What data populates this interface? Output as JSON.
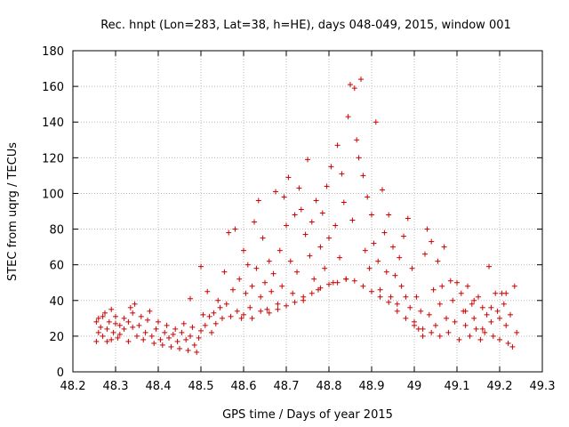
{
  "chart_data": {
    "type": "scatter",
    "title": "Rec. hnpt (Lon=283, Lat=38, h=HE), days 048-049, 2015, window 001",
    "xlabel": "GPS time / Days of year 2015",
    "ylabel": "STEC from uqrg / TECUs",
    "xlim": [
      48.2,
      49.3
    ],
    "ylim": [
      0,
      180
    ],
    "xticks": [
      "48.2",
      "48.3",
      "48.4",
      "48.5",
      "48.6",
      "48.7",
      "48.8",
      "48.9",
      "49",
      "49.1",
      "49.2",
      "49.3"
    ],
    "yticks": [
      "0",
      "20",
      "40",
      "60",
      "80",
      "100",
      "120",
      "140",
      "160",
      "180"
    ],
    "grid": true,
    "marker": "+",
    "color": "#cc0000",
    "series": [
      {
        "name": "STEC",
        "points": [
          [
            48.255,
            17
          ],
          [
            48.26,
            30
          ],
          [
            48.265,
            25
          ],
          [
            48.27,
            20
          ],
          [
            48.275,
            33
          ],
          [
            48.28,
            17
          ],
          [
            48.285,
            28
          ],
          [
            48.29,
            35
          ],
          [
            48.295,
            22
          ],
          [
            48.3,
            31
          ],
          [
            48.305,
            19
          ],
          [
            48.31,
            26
          ],
          [
            48.255,
            28
          ],
          [
            48.26,
            22
          ],
          [
            48.27,
            31
          ],
          [
            48.28,
            24
          ],
          [
            48.29,
            18
          ],
          [
            48.3,
            27
          ],
          [
            48.31,
            21
          ],
          [
            48.32,
            30
          ],
          [
            48.33,
            17
          ],
          [
            48.34,
            25
          ],
          [
            48.32,
            24
          ],
          [
            48.33,
            28
          ],
          [
            48.335,
            36
          ],
          [
            48.34,
            33
          ],
          [
            48.345,
            38
          ],
          [
            48.35,
            20
          ],
          [
            48.355,
            26
          ],
          [
            48.36,
            31
          ],
          [
            48.365,
            18
          ],
          [
            48.37,
            22
          ],
          [
            48.375,
            29
          ],
          [
            48.38,
            34
          ],
          [
            48.385,
            20
          ],
          [
            48.39,
            16
          ],
          [
            48.395,
            24
          ],
          [
            48.4,
            28
          ],
          [
            48.405,
            18
          ],
          [
            48.41,
            15
          ],
          [
            48.415,
            22
          ],
          [
            48.42,
            26
          ],
          [
            48.425,
            19
          ],
          [
            48.43,
            14
          ],
          [
            48.435,
            21
          ],
          [
            48.44,
            24
          ],
          [
            48.445,
            17
          ],
          [
            48.45,
            13
          ],
          [
            48.455,
            22
          ],
          [
            48.46,
            27
          ],
          [
            48.465,
            18
          ],
          [
            48.47,
            12
          ],
          [
            48.475,
            20
          ],
          [
            48.48,
            25
          ],
          [
            48.485,
            15
          ],
          [
            48.49,
            11
          ],
          [
            48.495,
            19
          ],
          [
            48.5,
            23
          ],
          [
            48.475,
            41
          ],
          [
            48.5,
            59
          ],
          [
            48.505,
            32
          ],
          [
            48.51,
            26
          ],
          [
            48.515,
            45
          ],
          [
            48.52,
            31
          ],
          [
            48.525,
            22
          ],
          [
            48.53,
            33
          ],
          [
            48.535,
            27
          ],
          [
            48.54,
            40
          ],
          [
            48.545,
            36
          ],
          [
            48.55,
            30
          ],
          [
            48.555,
            56
          ],
          [
            48.56,
            38
          ],
          [
            48.565,
            78
          ],
          [
            48.57,
            31
          ],
          [
            48.575,
            46
          ],
          [
            48.58,
            80
          ],
          [
            48.585,
            34
          ],
          [
            48.59,
            52
          ],
          [
            48.595,
            30
          ],
          [
            48.6,
            68
          ],
          [
            48.605,
            44
          ],
          [
            48.61,
            60
          ],
          [
            48.615,
            36
          ],
          [
            48.62,
            48
          ],
          [
            48.625,
            84
          ],
          [
            48.63,
            58
          ],
          [
            48.635,
            96
          ],
          [
            48.64,
            42
          ],
          [
            48.645,
            75
          ],
          [
            48.65,
            50
          ],
          [
            48.655,
            35
          ],
          [
            48.66,
            62
          ],
          [
            48.665,
            45
          ],
          [
            48.67,
            55
          ],
          [
            48.675,
            101
          ],
          [
            48.68,
            38
          ],
          [
            48.685,
            68
          ],
          [
            48.69,
            48
          ],
          [
            48.695,
            98
          ],
          [
            48.7,
            82
          ],
          [
            48.705,
            109
          ],
          [
            48.71,
            62
          ],
          [
            48.715,
            44
          ],
          [
            48.72,
            88
          ],
          [
            48.725,
            56
          ],
          [
            48.73,
            103
          ],
          [
            48.735,
            91
          ],
          [
            48.74,
            40
          ],
          [
            48.745,
            77
          ],
          [
            48.75,
            119
          ],
          [
            48.755,
            65
          ],
          [
            48.76,
            84
          ],
          [
            48.765,
            52
          ],
          [
            48.77,
            96
          ],
          [
            48.775,
            46
          ],
          [
            48.78,
            70
          ],
          [
            48.785,
            89
          ],
          [
            48.79,
            58
          ],
          [
            48.795,
            104
          ],
          [
            48.8,
            75
          ],
          [
            48.805,
            115
          ],
          [
            48.81,
            50
          ],
          [
            48.815,
            82
          ],
          [
            48.82,
            127
          ],
          [
            48.825,
            64
          ],
          [
            48.83,
            111
          ],
          [
            48.835,
            95
          ],
          [
            48.84,
            52
          ],
          [
            48.845,
            143
          ],
          [
            48.85,
            161
          ],
          [
            48.855,
            85
          ],
          [
            48.86,
            159
          ],
          [
            48.865,
            130
          ],
          [
            48.87,
            120
          ],
          [
            48.875,
            164
          ],
          [
            48.88,
            110
          ],
          [
            48.885,
            68
          ],
          [
            48.89,
            98
          ],
          [
            48.895,
            58
          ],
          [
            48.9,
            88
          ],
          [
            48.905,
            72
          ],
          [
            48.91,
            140
          ],
          [
            48.915,
            62
          ],
          [
            48.92,
            46
          ],
          [
            48.925,
            102
          ],
          [
            48.93,
            78
          ],
          [
            48.935,
            56
          ],
          [
            48.94,
            88
          ],
          [
            48.945,
            42
          ],
          [
            48.95,
            70
          ],
          [
            48.955,
            54
          ],
          [
            48.96,
            38
          ],
          [
            48.965,
            64
          ],
          [
            48.97,
            48
          ],
          [
            48.975,
            76
          ],
          [
            48.98,
            42
          ],
          [
            48.985,
            86
          ],
          [
            48.99,
            36
          ],
          [
            48.995,
            58
          ],
          [
            49.0,
            28
          ],
          [
            49.005,
            42
          ],
          [
            49.01,
            24
          ],
          [
            49.015,
            34
          ],
          [
            49.02,
            20
          ],
          [
            49.025,
            66
          ],
          [
            49.03,
            80
          ],
          [
            49.035,
            32
          ],
          [
            49.04,
            73
          ],
          [
            49.045,
            46
          ],
          [
            49.05,
            26
          ],
          [
            49.055,
            62
          ],
          [
            49.06,
            38
          ],
          [
            49.065,
            48
          ],
          [
            49.07,
            70
          ],
          [
            49.075,
            30
          ],
          [
            49.08,
            22
          ],
          [
            49.085,
            51
          ],
          [
            49.09,
            40
          ],
          [
            49.095,
            28
          ],
          [
            49.1,
            50
          ],
          [
            49.105,
            18
          ],
          [
            49.11,
            44
          ],
          [
            49.115,
            34
          ],
          [
            49.12,
            26
          ],
          [
            49.125,
            48
          ],
          [
            49.13,
            20
          ],
          [
            49.135,
            38
          ],
          [
            49.14,
            30
          ],
          [
            49.145,
            24
          ],
          [
            49.15,
            42
          ],
          [
            49.155,
            18
          ],
          [
            49.16,
            36
          ],
          [
            49.165,
            22
          ],
          [
            49.17,
            32
          ],
          [
            49.175,
            59
          ],
          [
            49.18,
            28
          ],
          [
            49.185,
            20
          ],
          [
            49.19,
            44
          ],
          [
            49.195,
            34
          ],
          [
            49.2,
            18
          ],
          [
            49.205,
            44
          ],
          [
            49.21,
            38
          ],
          [
            49.215,
            26
          ],
          [
            49.22,
            16
          ],
          [
            49.225,
            32
          ],
          [
            49.23,
            14
          ],
          [
            49.235,
            48
          ],
          [
            49.24,
            22
          ],
          [
            49.215,
            44
          ],
          [
            49.2,
            30
          ],
          [
            49.18,
            36
          ],
          [
            49.16,
            24
          ],
          [
            49.14,
            40
          ],
          [
            49.12,
            34
          ],
          [
            48.6,
            32
          ],
          [
            48.62,
            30
          ],
          [
            48.64,
            34
          ],
          [
            48.66,
            33
          ],
          [
            48.68,
            35
          ],
          [
            48.7,
            37
          ],
          [
            48.72,
            39
          ],
          [
            48.74,
            42
          ],
          [
            48.76,
            44
          ],
          [
            48.78,
            47
          ],
          [
            48.8,
            49
          ],
          [
            48.82,
            50
          ],
          [
            48.84,
            52
          ],
          [
            48.86,
            51
          ],
          [
            48.88,
            48
          ],
          [
            48.9,
            45
          ],
          [
            48.92,
            42
          ],
          [
            48.94,
            39
          ],
          [
            48.96,
            34
          ],
          [
            48.98,
            30
          ],
          [
            49.0,
            26
          ],
          [
            49.02,
            24
          ],
          [
            49.04,
            22
          ],
          [
            49.06,
            20
          ]
        ]
      }
    ]
  }
}
